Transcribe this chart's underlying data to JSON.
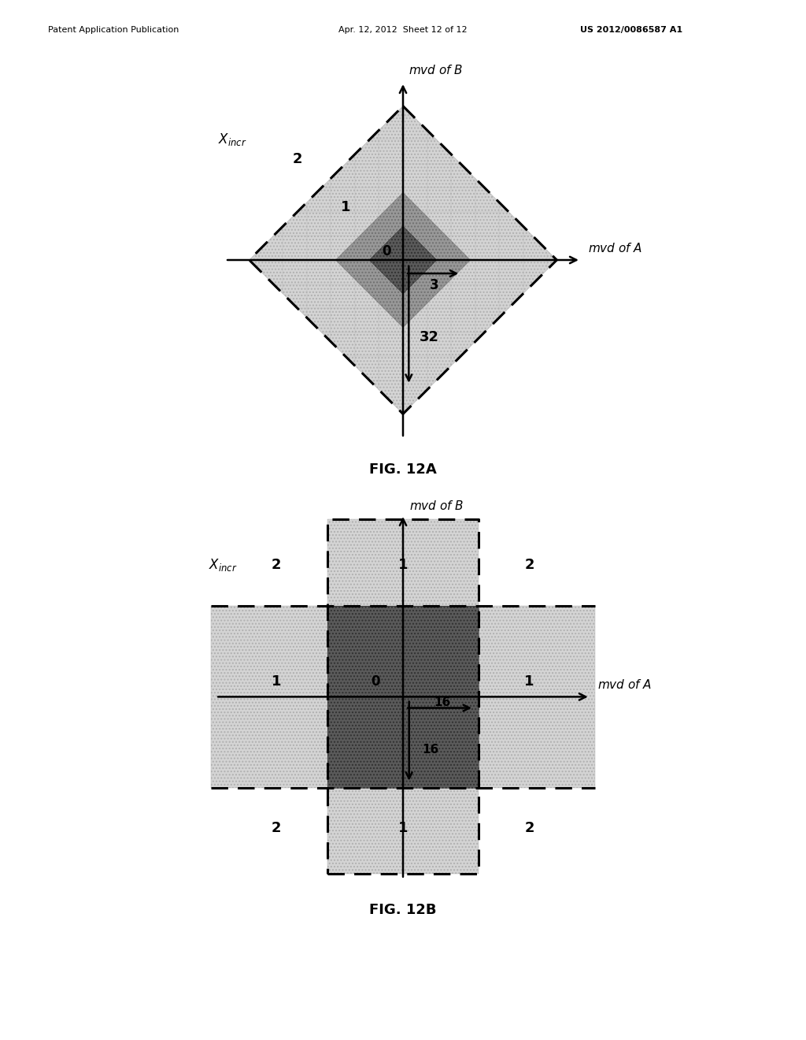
{
  "fig_width": 10.24,
  "fig_height": 13.2,
  "bg_color": "#ffffff",
  "header_left": "Patent Application Publication",
  "header_mid": "Apr. 12, 2012  Sheet 12 of 12",
  "header_right": "US 2012/0086587 A1",
  "fig12a_label": "FIG. 12A",
  "fig12b_label": "FIG. 12B",
  "light_gray": "#d4d4d4",
  "medium_gray": "#989898",
  "dark_gray": "#5a5a5a",
  "grid_line_color": "#b0b0b0"
}
